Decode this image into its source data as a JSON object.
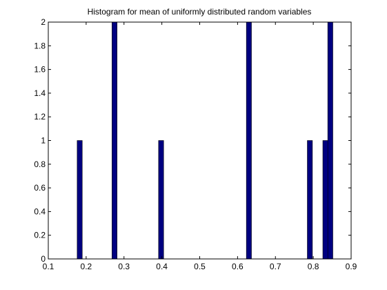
{
  "chart_data": {
    "type": "bar",
    "title": "Histogram for mean of uniformly distributed random variables",
    "xlabel": "",
    "ylabel": "",
    "xlim": [
      0.1,
      0.9
    ],
    "ylim": [
      0,
      2
    ],
    "xticks": [
      0.1,
      0.2,
      0.3,
      0.4,
      0.5,
      0.6,
      0.7,
      0.8,
      0.9
    ],
    "xtick_labels": [
      "0.1",
      "0.2",
      "0.3",
      "0.4",
      "0.5",
      "0.6",
      "0.7",
      "0.8",
      "0.9"
    ],
    "yticks": [
      0,
      0.2,
      0.4,
      0.6,
      0.8,
      1,
      1.2,
      1.4,
      1.6,
      1.8,
      2
    ],
    "ytick_labels": [
      "0",
      "0.2",
      "0.4",
      "0.6",
      "0.8",
      "1",
      "1.2",
      "1.4",
      "1.6",
      "1.8",
      "2"
    ],
    "grid": false,
    "bar_color": "#000080",
    "bin_width": 0.0134,
    "bars": [
      {
        "x": 0.183,
        "value": 1
      },
      {
        "x": 0.275,
        "value": 2
      },
      {
        "x": 0.398,
        "value": 1
      },
      {
        "x": 0.63,
        "value": 2
      },
      {
        "x": 0.791,
        "value": 1
      },
      {
        "x": 0.832,
        "value": 1
      },
      {
        "x": 0.845,
        "value": 2
      }
    ]
  }
}
